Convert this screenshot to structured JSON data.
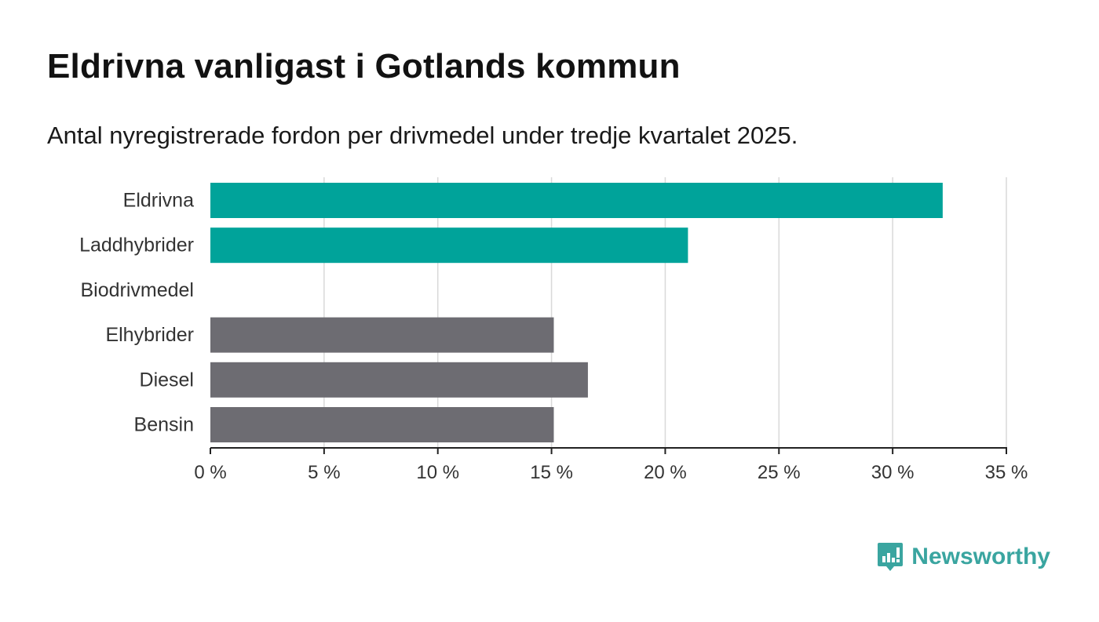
{
  "header": {
    "title": "Eldrivna vanligast i Gotlands kommun",
    "subtitle": "Antal nyregistrerade fordon per drivmedel under tredje kvartalet 2025."
  },
  "brand": {
    "name": "Newsworthy",
    "color": "#3aa5a0"
  },
  "colors": {
    "highlight": "#00a39a",
    "default": "#6d6c72",
    "grid": "#d9d9d9",
    "axis": "#222222"
  },
  "chart_data": {
    "type": "bar",
    "orientation": "horizontal",
    "title": "Eldrivna vanligast i Gotlands kommun",
    "subtitle": "Antal nyregistrerade fordon per drivmedel under tredje kvartalet 2025.",
    "categories": [
      "Eldrivna",
      "Laddhybrider",
      "Biodrivmedel",
      "Elhybrider",
      "Diesel",
      "Bensin"
    ],
    "values": [
      32.2,
      21.0,
      0,
      15.1,
      16.6,
      15.1
    ],
    "highlight": [
      true,
      true,
      false,
      false,
      false,
      false
    ],
    "xlim": [
      0,
      35
    ],
    "xticks": [
      0,
      5,
      10,
      15,
      20,
      25,
      30,
      35
    ],
    "xtick_labels": [
      "0 %",
      "5 %",
      "10 %",
      "15 %",
      "20 %",
      "25 %",
      "30 %",
      "35 %"
    ],
    "unit": "%",
    "grid": true,
    "xlabel": "",
    "ylabel": ""
  }
}
